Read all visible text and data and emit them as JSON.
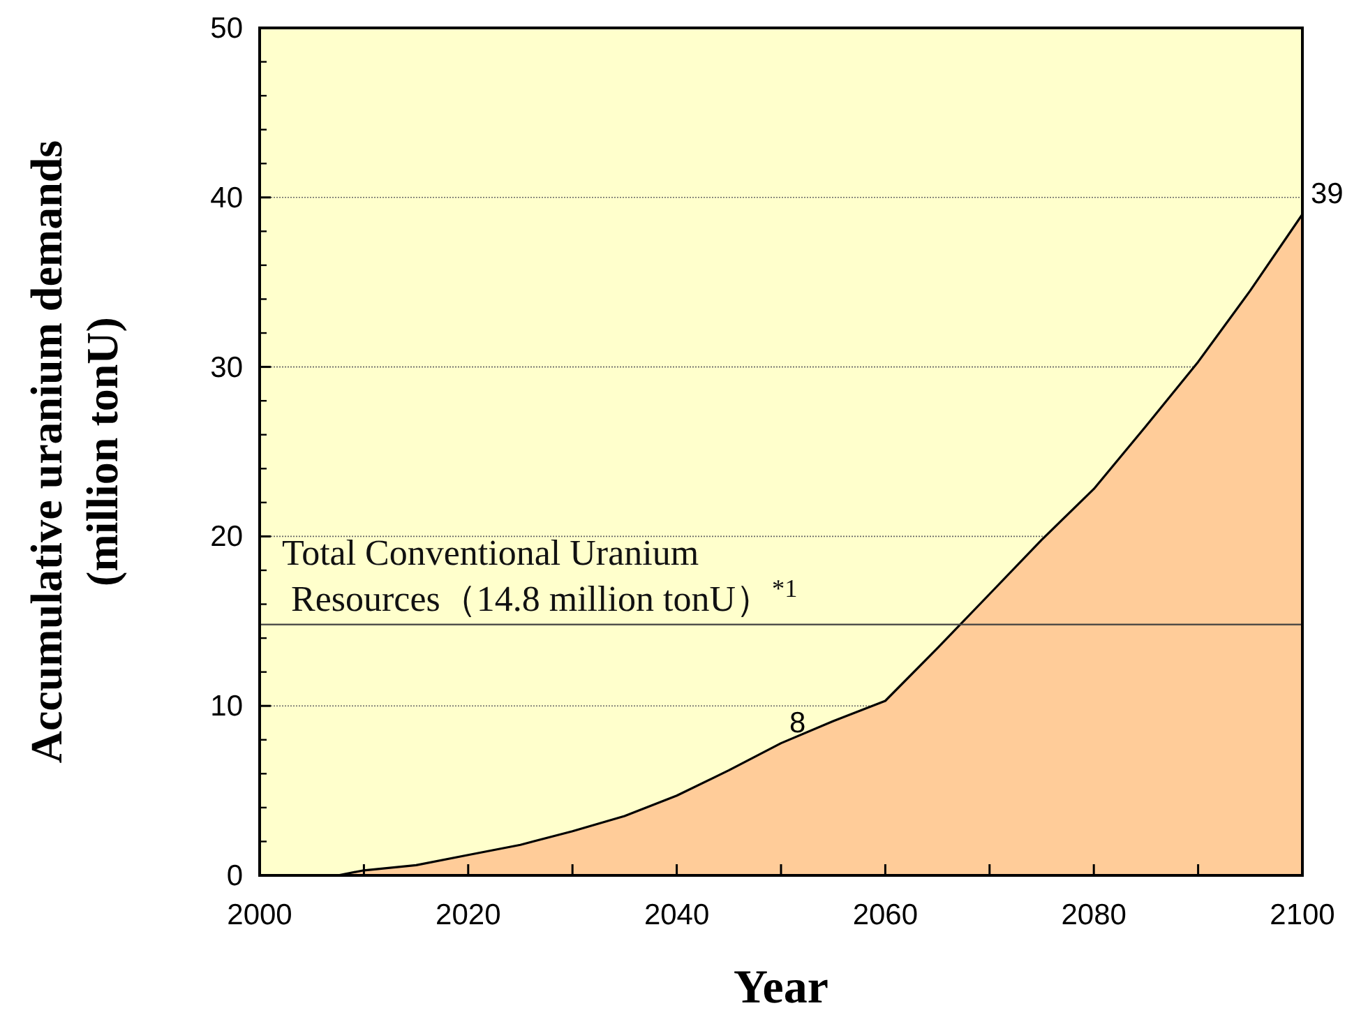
{
  "chart_data": {
    "type": "area",
    "xlabel": "Year",
    "ylabel": "Accumulative uranium demands\n(million tonU)",
    "x": [
      2007.5,
      2010,
      2015,
      2020,
      2025,
      2030,
      2035,
      2040,
      2045,
      2050,
      2055,
      2060,
      2065,
      2070,
      2075,
      2080,
      2085,
      2090,
      2095,
      2100
    ],
    "series": [
      {
        "color": "#ffcc99",
        "values": [
          0,
          0.3,
          0.6,
          1.2,
          1.8,
          2.6,
          3.5,
          4.7,
          6.2,
          7.8,
          9.1,
          10.3,
          13.4,
          16.6,
          19.8,
          22.8,
          26.5,
          30.3,
          34.5,
          39
        ]
      }
    ],
    "xlim": [
      2000,
      2100
    ],
    "xticks": [
      2000,
      2020,
      2040,
      2060,
      2080,
      2100
    ],
    "ylim": [
      0,
      50
    ],
    "yticks": [
      0,
      10,
      20,
      30,
      40,
      50
    ],
    "grid": "y",
    "ref_lines": [
      {
        "axis": "y",
        "value": 14.8,
        "label": "Total Conventional Uranium\n Resources（14.8 million tonU）$^{*1}$",
        "color": "#404040"
      }
    ],
    "annotations": [
      {
        "text": "8",
        "x": 2050,
        "y": 7.8
      },
      {
        "text": "39",
        "x": 2100,
        "y": 39
      }
    ]
  }
}
